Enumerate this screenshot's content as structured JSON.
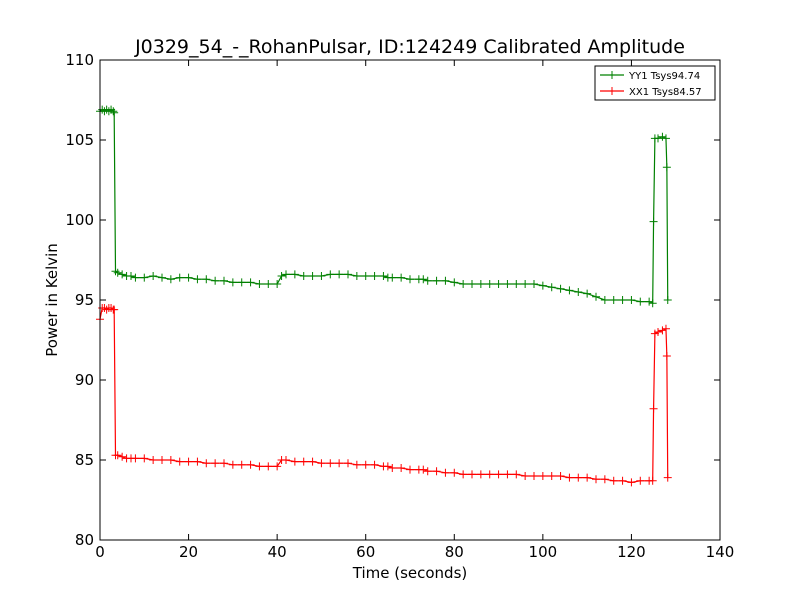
{
  "chart_data": {
    "type": "line",
    "title": "J0329_54_-_RohanPulsar, ID:124249 Calibrated Amplitude",
    "xlabel": "Time (seconds)",
    "ylabel": "Power in Kelvin",
    "xlim": [
      0,
      140
    ],
    "ylim": [
      80,
      110
    ],
    "x_ticks": [
      0,
      20,
      40,
      60,
      80,
      100,
      120,
      140
    ],
    "y_ticks": [
      80,
      85,
      90,
      95,
      100,
      105,
      110
    ],
    "x_tick_labels": [
      "0",
      "20",
      "40",
      "60",
      "80",
      "100",
      "120",
      "140"
    ],
    "y_tick_labels": [
      "80",
      "85",
      "90",
      "95",
      "100",
      "105",
      "110"
    ],
    "grid": false,
    "legend_position": "top-right",
    "marker": "plus",
    "series": [
      {
        "name": "YY1 Tsys94.74",
        "color": "#008000",
        "x": [
          0.0,
          0.5,
          1.0,
          1.5,
          2.0,
          2.5,
          3.0,
          3.2,
          3.5,
          4.0,
          5,
          6,
          7,
          8,
          10,
          12,
          14,
          16,
          18,
          20,
          22,
          24,
          26,
          28,
          30,
          32,
          34,
          36,
          38,
          40,
          41,
          42,
          44,
          46,
          48,
          50,
          52,
          54,
          56,
          58,
          60,
          62,
          64,
          65,
          66,
          68,
          70,
          72,
          73,
          74,
          76,
          78,
          80,
          82,
          84,
          86,
          88,
          90,
          92,
          94,
          96,
          98,
          100,
          102,
          104,
          106,
          108,
          110,
          112,
          114,
          116,
          118,
          120,
          122,
          124,
          124.8,
          125.0,
          125.3,
          126,
          127,
          127.8,
          128.0,
          128.2
        ],
        "values": [
          106.8,
          106.9,
          106.8,
          106.9,
          106.8,
          106.9,
          106.8,
          106.7,
          96.8,
          96.7,
          96.6,
          96.5,
          96.5,
          96.4,
          96.4,
          96.5,
          96.4,
          96.3,
          96.4,
          96.4,
          96.3,
          96.3,
          96.2,
          96.2,
          96.1,
          96.1,
          96.1,
          96.0,
          96.0,
          96.0,
          96.5,
          96.6,
          96.6,
          96.5,
          96.5,
          96.5,
          96.6,
          96.6,
          96.6,
          96.5,
          96.5,
          96.5,
          96.5,
          96.4,
          96.4,
          96.4,
          96.3,
          96.3,
          96.3,
          96.2,
          96.2,
          96.2,
          96.1,
          96.0,
          96.0,
          96.0,
          96.0,
          96.0,
          96.0,
          96.0,
          96.0,
          96.0,
          95.9,
          95.8,
          95.7,
          95.6,
          95.5,
          95.4,
          95.2,
          95.0,
          95.0,
          95.0,
          95.0,
          94.9,
          94.9,
          94.8,
          99.9,
          105.1,
          105.1,
          105.2,
          105.1,
          103.3,
          95.0
        ]
      },
      {
        "name": "XX1 Tsys84.57",
        "color": "#ff0000",
        "x": [
          0.0,
          0.5,
          1.0,
          1.5,
          2.0,
          2.5,
          3.0,
          3.2,
          3.5,
          4.0,
          5,
          6,
          7,
          8,
          10,
          12,
          14,
          16,
          18,
          20,
          22,
          24,
          26,
          28,
          30,
          32,
          34,
          36,
          38,
          40,
          41,
          42,
          44,
          46,
          48,
          50,
          52,
          54,
          56,
          58,
          60,
          62,
          64,
          65,
          66,
          68,
          70,
          72,
          73,
          74,
          76,
          78,
          80,
          82,
          84,
          86,
          88,
          90,
          92,
          94,
          96,
          98,
          100,
          102,
          104,
          106,
          108,
          110,
          112,
          114,
          116,
          118,
          120,
          122,
          124,
          124.8,
          125.0,
          125.3,
          126,
          127,
          127.8,
          128.0,
          128.2
        ],
        "values": [
          93.8,
          94.5,
          94.5,
          94.4,
          94.5,
          94.5,
          94.4,
          94.4,
          85.3,
          85.3,
          85.2,
          85.1,
          85.1,
          85.1,
          85.1,
          85.0,
          85.0,
          85.0,
          84.9,
          84.9,
          84.9,
          84.8,
          84.8,
          84.8,
          84.7,
          84.7,
          84.7,
          84.6,
          84.6,
          84.6,
          85.0,
          85.0,
          84.9,
          84.9,
          84.9,
          84.8,
          84.8,
          84.8,
          84.8,
          84.7,
          84.7,
          84.7,
          84.6,
          84.6,
          84.5,
          84.5,
          84.4,
          84.4,
          84.4,
          84.3,
          84.3,
          84.2,
          84.2,
          84.1,
          84.1,
          84.1,
          84.1,
          84.1,
          84.1,
          84.1,
          84.0,
          84.0,
          84.0,
          84.0,
          84.0,
          83.9,
          83.9,
          83.9,
          83.8,
          83.8,
          83.7,
          83.7,
          83.6,
          83.7,
          83.7,
          83.7,
          88.2,
          92.9,
          93.0,
          93.1,
          93.2,
          91.5,
          83.9
        ]
      }
    ]
  }
}
